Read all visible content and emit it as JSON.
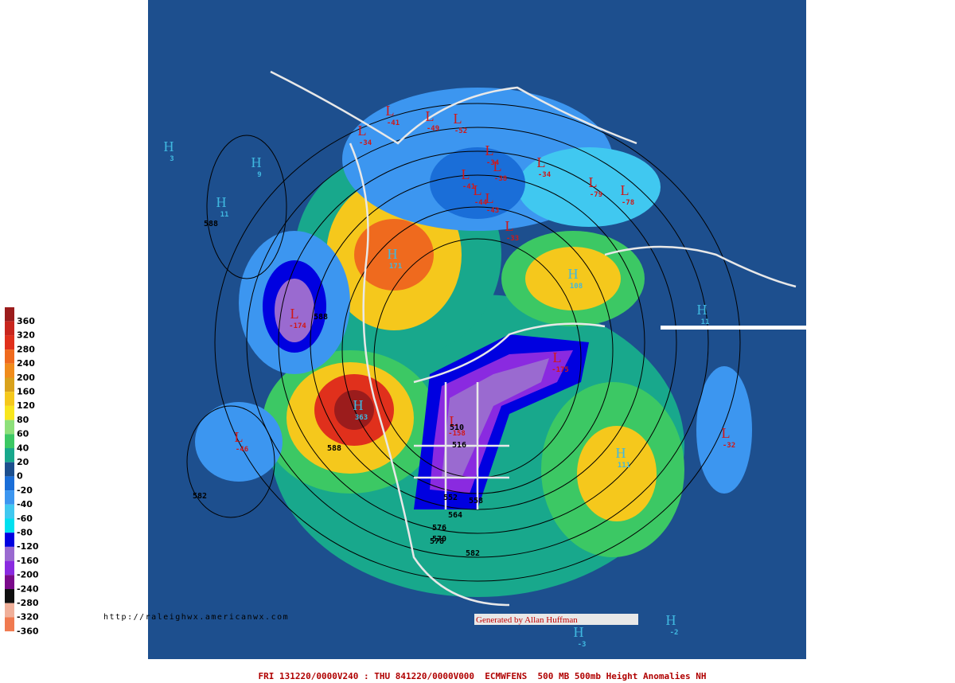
{
  "legend": {
    "labels": [
      "360",
      "320",
      "280",
      "240",
      "200",
      "160",
      "120",
      "80",
      "60",
      "40",
      "20",
      "0",
      "-20",
      "-40",
      "-60",
      "-80",
      "-120",
      "-160",
      "-200",
      "-240",
      "-280",
      "-320",
      "-360"
    ],
    "colors": [
      "#9b1c1c",
      "#c8261e",
      "#e0301c",
      "#ef6a1e",
      "#f08c1c",
      "#d9a21c",
      "#f5c81c",
      "#f8e61e",
      "#8ee07a",
      "#3cc864",
      "#18a88c",
      "#1d4f8e",
      "#1a6ed8",
      "#3c96f0",
      "#40c8f0",
      "#00e0f0",
      "#0000e0",
      "#9a6ad0",
      "#8a2ae0",
      "#7a0a8a",
      "#101010",
      "#f0b09a",
      "#f07a50"
    ]
  },
  "centers": [
    {
      "letter": "L",
      "value": "-41"
    },
    {
      "letter": "L",
      "value": "-49"
    },
    {
      "letter": "L",
      "value": "-52"
    },
    {
      "letter": "L",
      "value": "-34"
    },
    {
      "letter": "L",
      "value": "-34"
    },
    {
      "letter": "L",
      "value": "-38"
    },
    {
      "letter": "L",
      "value": "-34"
    },
    {
      "letter": "L",
      "value": "-41"
    },
    {
      "letter": "L",
      "value": "-44"
    },
    {
      "letter": "L",
      "value": "-43"
    },
    {
      "letter": "L",
      "value": "-79"
    },
    {
      "letter": "L",
      "value": "-78"
    },
    {
      "letter": "L",
      "value": "-33"
    },
    {
      "letter": "L",
      "value": "-174"
    },
    {
      "letter": "L",
      "value": "-175"
    },
    {
      "letter": "L",
      "value": "-46"
    },
    {
      "letter": "L",
      "value": "-32"
    },
    {
      "letter": "L",
      "value": "-158"
    },
    {
      "letter": "H",
      "value": "171"
    },
    {
      "letter": "H",
      "value": "363"
    },
    {
      "letter": "H",
      "value": "111"
    },
    {
      "letter": "H",
      "value": "108"
    },
    {
      "letter": "H",
      "value": "3"
    },
    {
      "letter": "H",
      "value": "9"
    },
    {
      "letter": "H",
      "value": "11"
    },
    {
      "letter": "H",
      "value": "11"
    },
    {
      "letter": "H",
      "value": "-2"
    },
    {
      "letter": "H",
      "value": "-3"
    }
  ],
  "contour_labels": [
    "588",
    "588",
    "582",
    "588",
    "582",
    "578",
    "576",
    "570",
    "564",
    "558",
    "552",
    "516",
    "510"
  ],
  "url": "http://raleighwx.americanwx.com",
  "credit": "Generated by Allan Huffman",
  "footer": "FRI 131220/0000V240 : THU 841220/0000V000  ECMWFENS  500 MB 500mb Height Anomalies NH"
}
